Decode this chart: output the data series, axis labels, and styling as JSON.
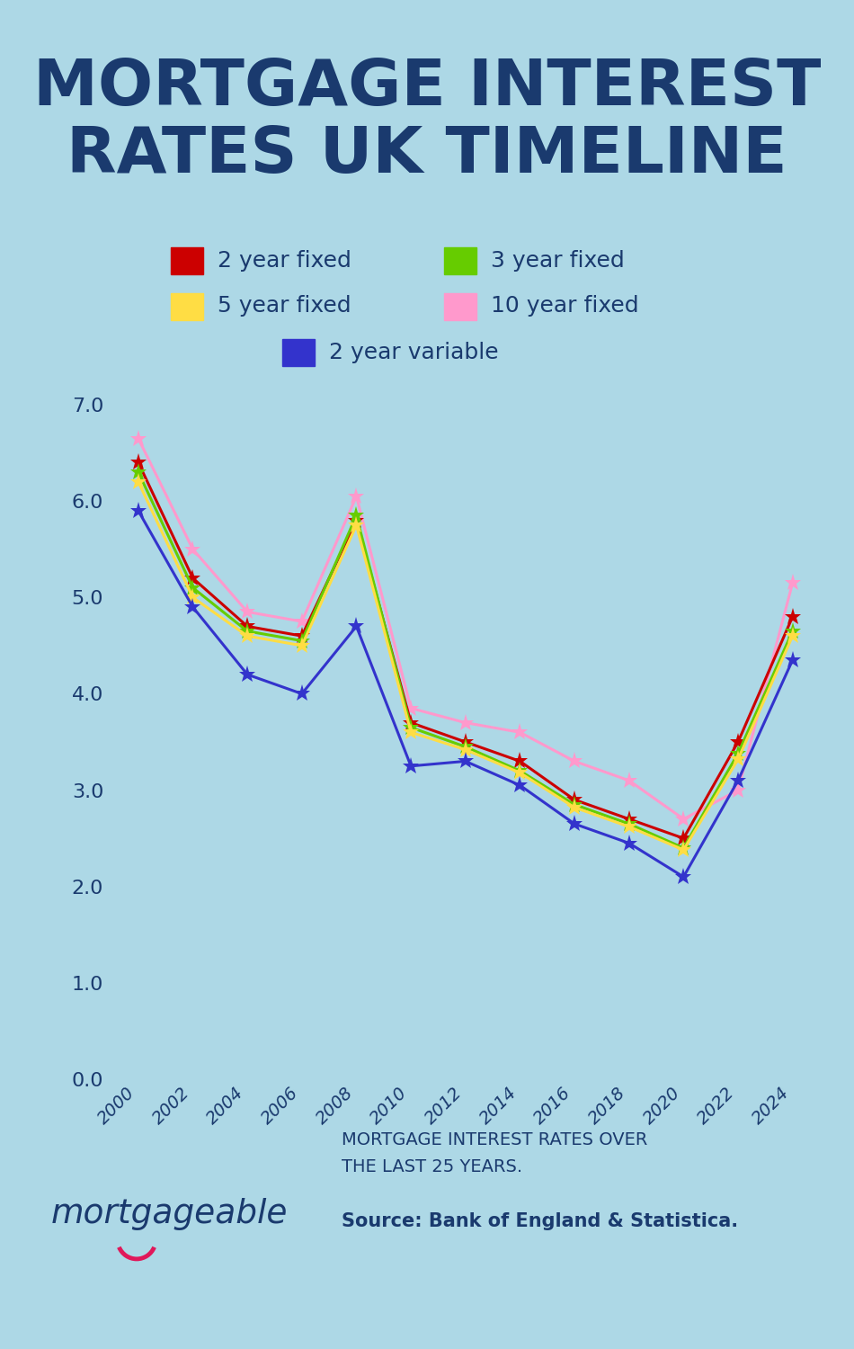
{
  "title_line1": "MORTGAGE INTEREST",
  "title_line2": "RATES UK TIMELINE",
  "background_color": "#ADD8E6",
  "title_color": "#1a3a6e",
  "axis_color": "#1a3a6e",
  "years": [
    2000,
    2002,
    2004,
    2006,
    2008,
    2010,
    2012,
    2014,
    2016,
    2018,
    2020,
    2022,
    2024
  ],
  "series": {
    "2 year fixed": {
      "color": "#cc0000",
      "values": [
        6.4,
        5.2,
        4.7,
        4.6,
        5.8,
        3.7,
        3.5,
        3.3,
        2.9,
        2.7,
        2.5,
        3.5,
        4.8
      ]
    },
    "3 year fixed": {
      "color": "#66cc00",
      "values": [
        6.3,
        5.1,
        4.65,
        4.55,
        5.85,
        3.65,
        3.45,
        3.2,
        2.85,
        2.65,
        2.4,
        3.38,
        4.65
      ]
    },
    "5 year fixed": {
      "color": "#ffdd44",
      "values": [
        6.2,
        5.0,
        4.6,
        4.5,
        5.75,
        3.6,
        3.42,
        3.18,
        2.82,
        2.62,
        2.38,
        3.32,
        4.6
      ]
    },
    "10 year fixed": {
      "color": "#ff99cc",
      "values": [
        6.65,
        5.5,
        4.85,
        4.75,
        6.05,
        3.85,
        3.7,
        3.6,
        3.3,
        3.1,
        2.7,
        3.0,
        5.15
      ]
    },
    "2 year variable": {
      "color": "#3333cc",
      "values": [
        5.9,
        4.9,
        4.2,
        4.0,
        4.7,
        3.25,
        3.3,
        3.05,
        2.65,
        2.45,
        2.1,
        3.1,
        4.35
      ]
    }
  },
  "ylim": [
    0.0,
    7.0
  ],
  "yticks": [
    0.0,
    1.0,
    2.0,
    3.0,
    4.0,
    5.0,
    6.0,
    7.0
  ],
  "footer_text1": "MORTGAGE INTEREST RATES OVER",
  "footer_text2": "THE LAST 25 YEARS.",
  "source_text": "Source: Bank of England & Statistica.",
  "brand_text": "mortgageable"
}
